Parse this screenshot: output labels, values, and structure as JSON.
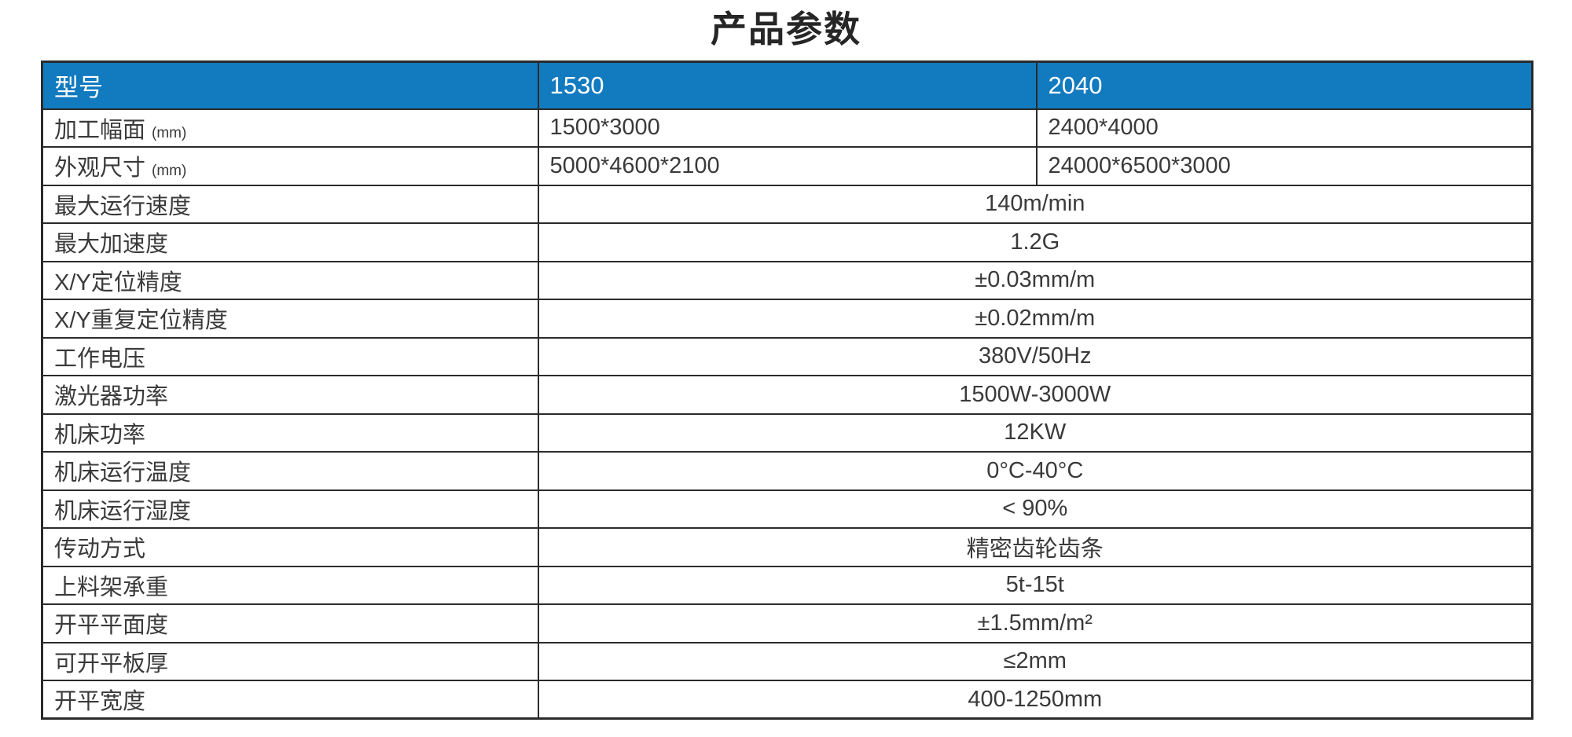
{
  "title": "产品参数",
  "table": {
    "header": {
      "model": "型号",
      "model_1530": "1530",
      "model_2040": "2040"
    },
    "split_rows": [
      {
        "label": "加工幅面",
        "unit": "(mm)",
        "value_1530": "1500*3000",
        "value_2040": "2400*4000"
      },
      {
        "label": "外观尺寸",
        "unit": "(mm)",
        "value_1530": "5000*4600*2100",
        "value_2040": "24000*6500*3000"
      }
    ],
    "merged_rows": [
      {
        "label": "最大运行速度",
        "value": "140m/min"
      },
      {
        "label": "最大加速度",
        "value": "1.2G"
      },
      {
        "label": "X/Y定位精度",
        "value": "±0.03mm/m"
      },
      {
        "label": "X/Y重复定位精度",
        "value": "±0.02mm/m"
      },
      {
        "label": "工作电压",
        "value": "380V/50Hz"
      },
      {
        "label": "激光器功率",
        "value": "1500W-3000W"
      },
      {
        "label": "机床功率",
        "value": "12KW"
      },
      {
        "label": "机床运行温度",
        "value": "0°C-40°C"
      },
      {
        "label": "机床运行湿度",
        "value": "< 90%"
      },
      {
        "label": "传动方式",
        "value": "精密齿轮齿条"
      },
      {
        "label": "上料架承重",
        "value": "5t-15t"
      },
      {
        "label": "开平平面度",
        "value": "±1.5mm/m²"
      },
      {
        "label": "可开平板厚",
        "value": "≤2mm"
      },
      {
        "label": "开平宽度",
        "value": "400-1250mm"
      }
    ]
  },
  "colors": {
    "header_bg": "#127ABF",
    "header_text": "#FFFFFF",
    "body_text": "#3A3A3A",
    "border": "#2B2B2B"
  }
}
